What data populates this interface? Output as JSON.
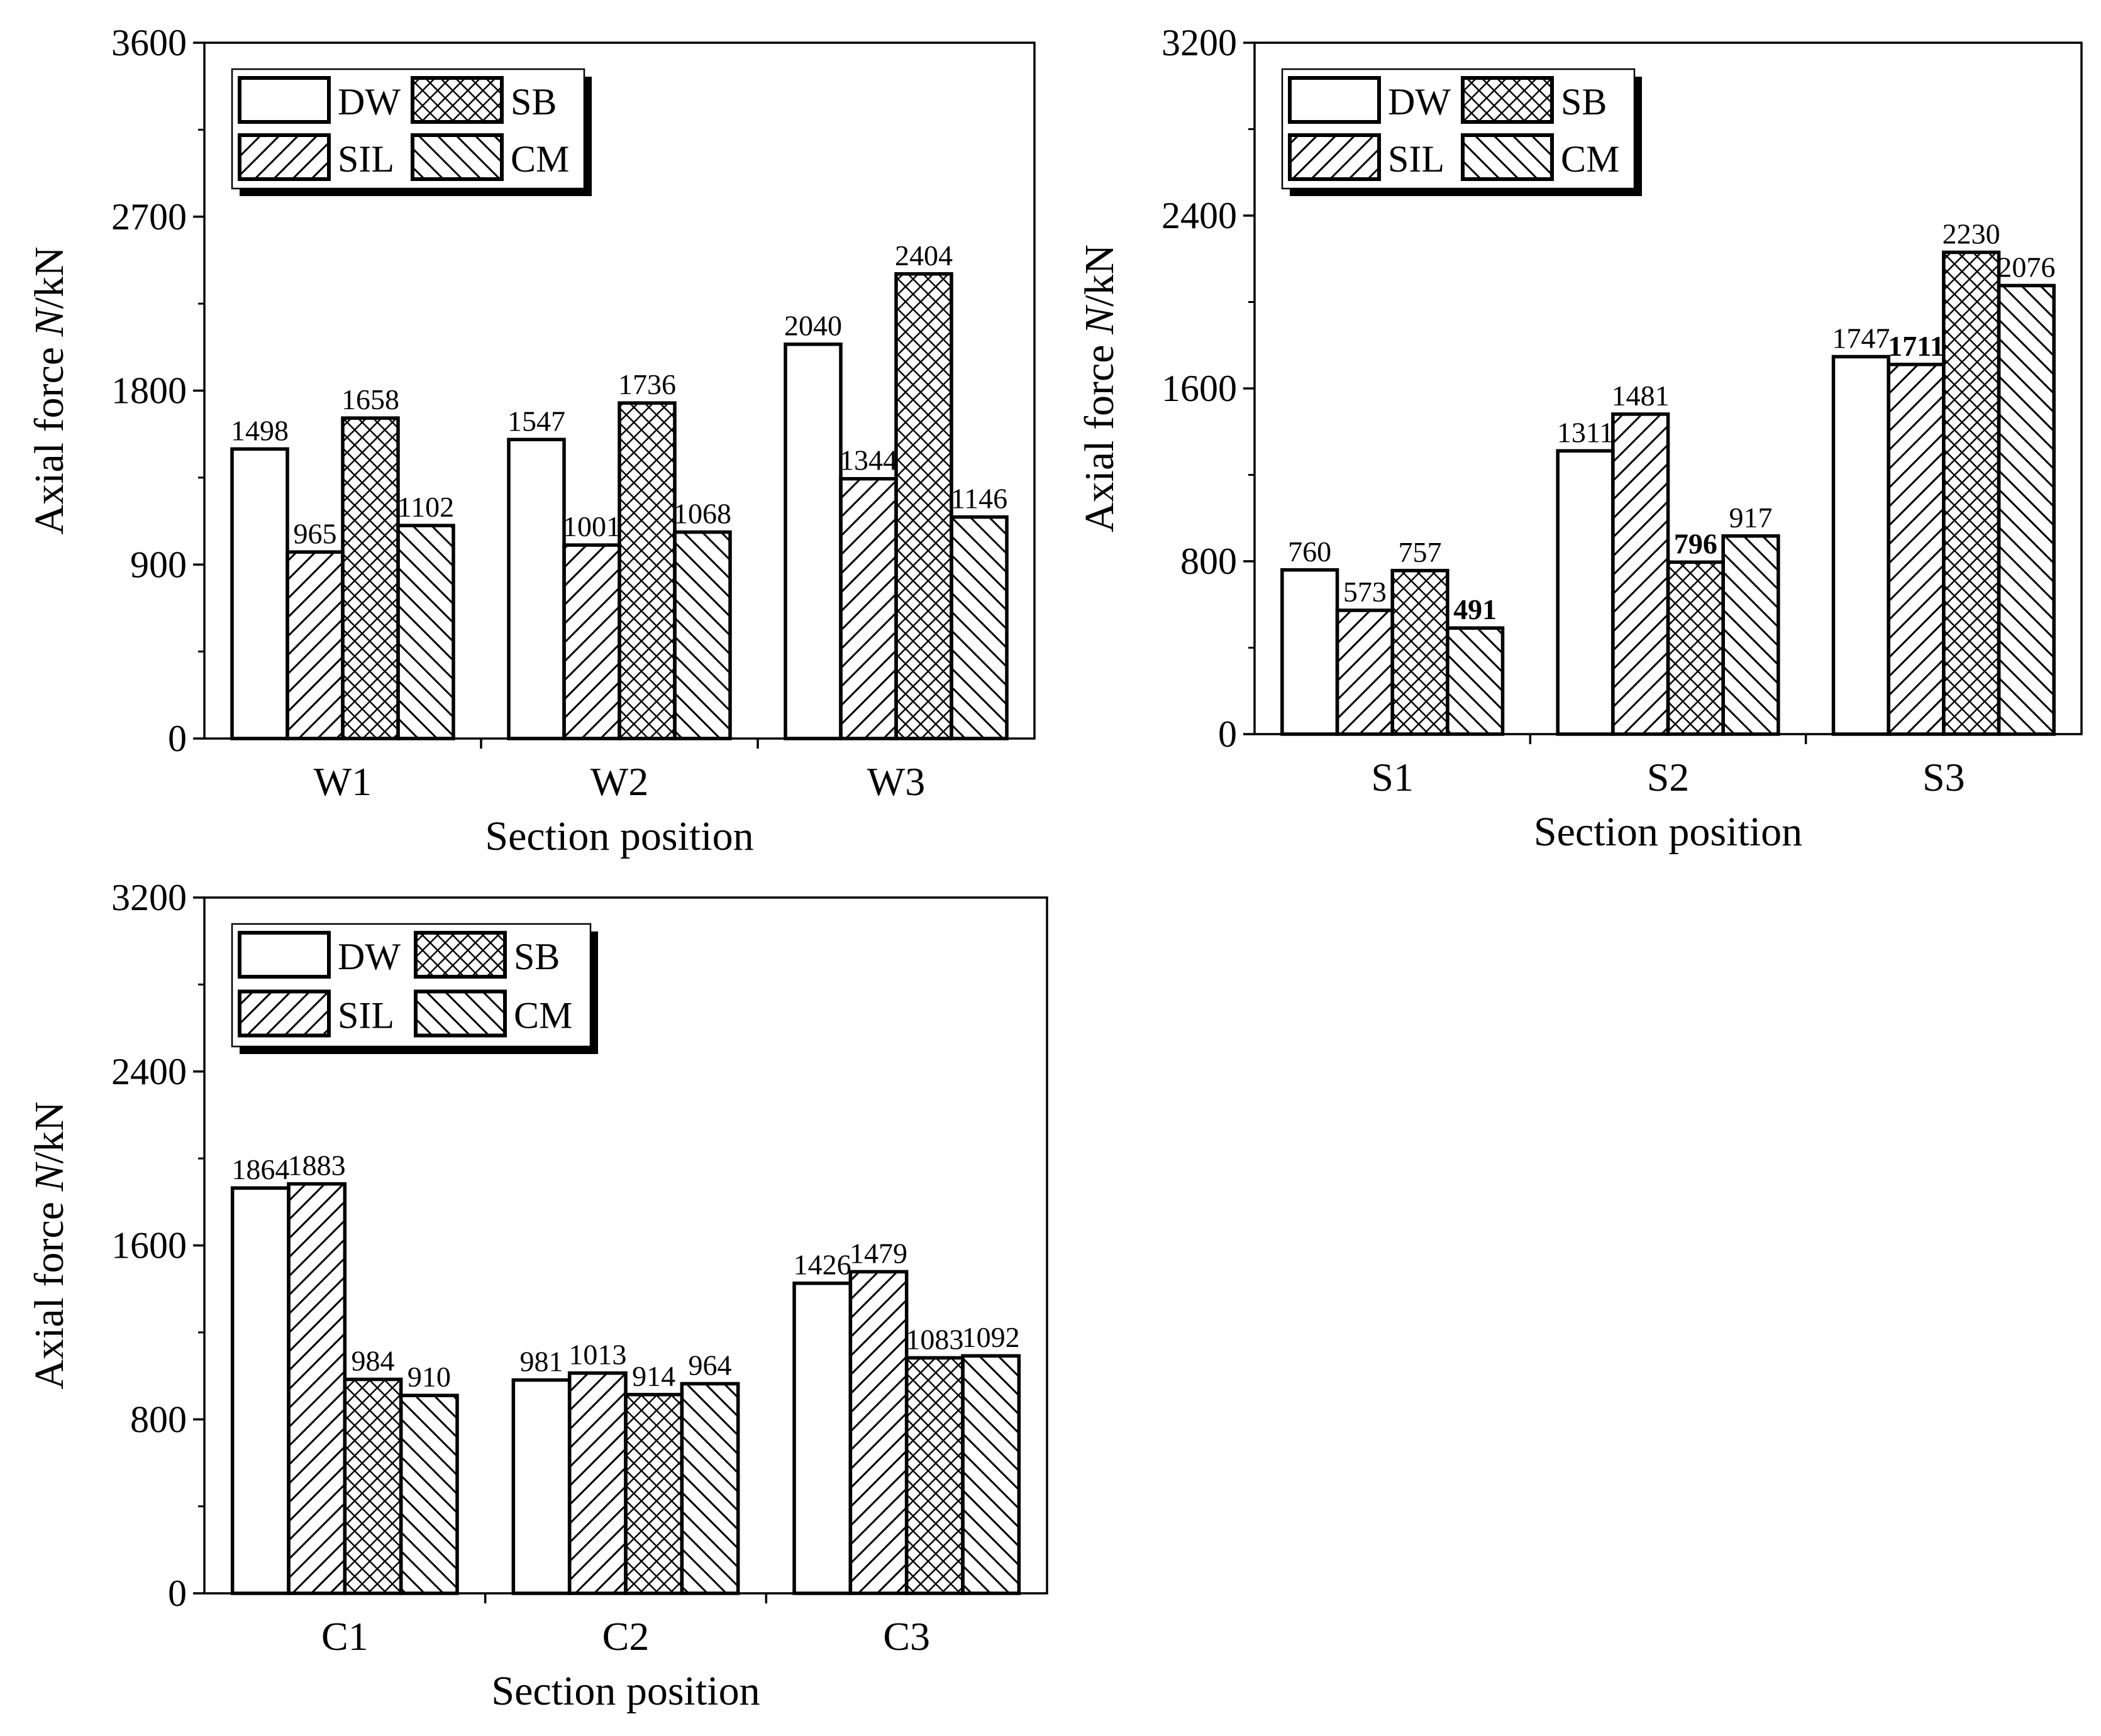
{
  "figure": {
    "background": "#ffffff"
  },
  "legend": {
    "labels": [
      "DW",
      "SB",
      "SIL",
      "CM"
    ],
    "patterns": [
      "none",
      "crosshatch",
      "diag-right",
      "diag-left"
    ]
  },
  "chart_data": [
    {
      "type": "bar",
      "categories": [
        "W1",
        "W2",
        "W3"
      ],
      "series": [
        {
          "name": "DW",
          "pattern": "none",
          "values": [
            1498,
            1547,
            2040
          ]
        },
        {
          "name": "SIL",
          "pattern": "diag-right",
          "values": [
            965,
            1001,
            1344
          ]
        },
        {
          "name": "SB",
          "pattern": "crosshatch",
          "values": [
            1658,
            1736,
            2404
          ]
        },
        {
          "name": "CM",
          "pattern": "diag-left",
          "values": [
            1102,
            1068,
            1146
          ]
        }
      ],
      "value_labels": [
        [
          "1498",
          "965",
          "1658",
          "1102"
        ],
        [
          "1547",
          "1001",
          "1736",
          "1068"
        ],
        [
          "2040",
          "1344",
          "2404",
          "1146"
        ]
      ],
      "bold_labels": [],
      "xlabel": "Section position",
      "ylabel_prefix": "Axial force ",
      "ylabel_var": "N",
      "ylabel_suffix": "/kN",
      "ylim": [
        0,
        3600
      ],
      "yticks": [
        0,
        900,
        1800,
        2700,
        3600
      ],
      "yticks_labels": [
        "0",
        "900",
        "1800",
        "2700",
        "3600"
      ],
      "legend_position": "top-left"
    },
    {
      "type": "bar",
      "categories": [
        "S1",
        "S2",
        "S3"
      ],
      "series": [
        {
          "name": "DW",
          "pattern": "none",
          "values": [
            760,
            1311,
            1747
          ]
        },
        {
          "name": "SIL",
          "pattern": "diag-right",
          "values": [
            573,
            1481,
            1711
          ]
        },
        {
          "name": "SB",
          "pattern": "crosshatch",
          "values": [
            757,
            796,
            2230
          ]
        },
        {
          "name": "CM",
          "pattern": "diag-left",
          "values": [
            491,
            917,
            2076
          ]
        }
      ],
      "value_labels": [
        [
          "760",
          "573",
          "757",
          "491"
        ],
        [
          "1311",
          "1481",
          "796",
          "917"
        ],
        [
          "1747",
          "1711",
          "2230",
          "2076"
        ]
      ],
      "bold_labels": [
        [
          0,
          3
        ],
        [
          1,
          2
        ],
        [
          2,
          1
        ]
      ],
      "xlabel": "Section position",
      "ylabel_prefix": "Axial force ",
      "ylabel_var": "N",
      "ylabel_suffix": "/kN",
      "ylim": [
        0,
        3200
      ],
      "yticks": [
        0,
        800,
        1600,
        2400,
        3200
      ],
      "yticks_labels": [
        "0",
        "800",
        "1600",
        "2400",
        "3200"
      ],
      "legend_position": "top-left"
    },
    {
      "type": "bar",
      "categories": [
        "C1",
        "C2",
        "C3"
      ],
      "series": [
        {
          "name": "DW",
          "pattern": "none",
          "values": [
            1864,
            981,
            1426
          ]
        },
        {
          "name": "SIL",
          "pattern": "diag-right",
          "values": [
            1883,
            1013,
            1479
          ]
        },
        {
          "name": "SB",
          "pattern": "crosshatch",
          "values": [
            984,
            914,
            1083
          ]
        },
        {
          "name": "CM",
          "pattern": "diag-left",
          "values": [
            910,
            964,
            1092
          ]
        }
      ],
      "value_labels": [
        [
          "1864",
          "1883",
          "984",
          "910"
        ],
        [
          "981",
          "1013",
          "914",
          "964"
        ],
        [
          "1426",
          "1479",
          "1083",
          "1092"
        ]
      ],
      "bold_labels": [],
      "xlabel": "Section position",
      "ylabel_prefix": "Axial force ",
      "ylabel_var": "N",
      "ylabel_suffix": "/kN",
      "ylim": [
        0,
        3200
      ],
      "yticks": [
        0,
        800,
        1600,
        2400,
        3200
      ],
      "yticks_labels": [
        "0",
        "800",
        "1600",
        "2400",
        "3200"
      ],
      "legend_position": "top-left"
    }
  ]
}
